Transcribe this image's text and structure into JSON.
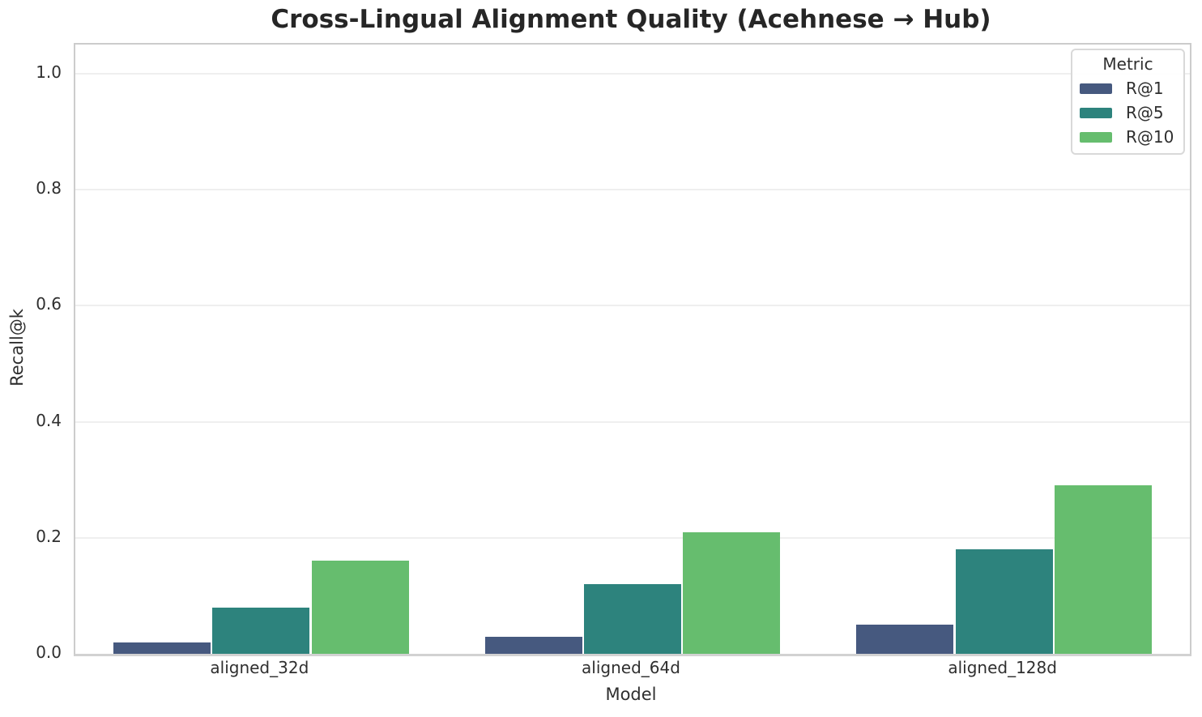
{
  "title": "Cross-Lingual Alignment Quality (Acehnese → Hub)",
  "chart_data": {
    "type": "bar",
    "title": "Cross-Lingual Alignment Quality (Acehnese → Hub)",
    "categories": [
      "aligned_32d",
      "aligned_64d",
      "aligned_128d"
    ],
    "series": [
      {
        "name": "R@1",
        "color": "#46597f",
        "values": [
          0.02,
          0.03,
          0.05
        ]
      },
      {
        "name": "R@5",
        "color": "#2d837d",
        "values": [
          0.08,
          0.12,
          0.18
        ]
      },
      {
        "name": "R@10",
        "color": "#66bd6e",
        "values": [
          0.16,
          0.21,
          0.29
        ]
      }
    ],
    "xlabel": "Model",
    "ylabel": "Recall@k",
    "ylim": [
      0,
      1.05
    ],
    "yticks": [
      0.0,
      0.2,
      0.4,
      0.6,
      0.8,
      1.0
    ],
    "ytick_labels": [
      "0.0",
      "0.2",
      "0.4",
      "0.6",
      "0.8",
      "1.0"
    ],
    "grid": true,
    "legend": {
      "title": "Metric",
      "position": "upper right"
    }
  }
}
